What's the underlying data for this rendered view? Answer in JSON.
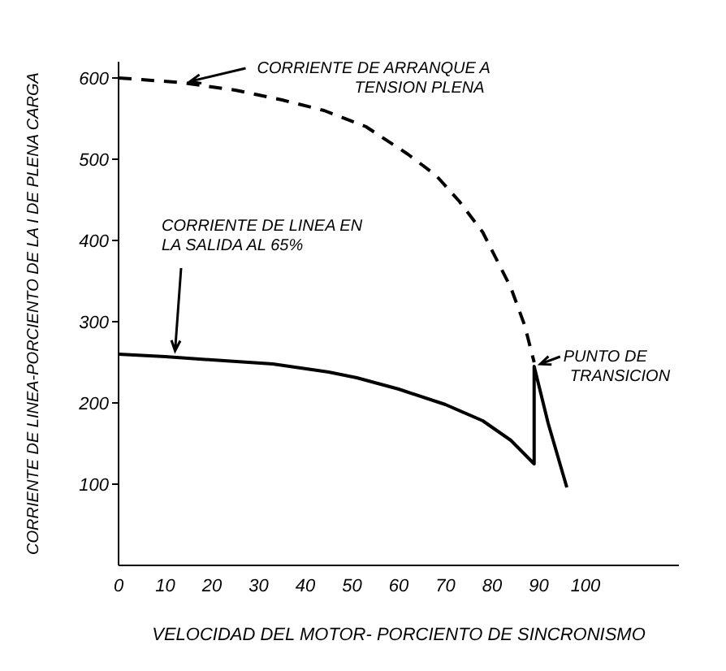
{
  "chart_data": {
    "type": "line",
    "xlabel": "VELOCIDAD DEL MOTOR- PORCIENTO DE SINCRONISMO",
    "ylabel": "CORRIENTE DE LINEA-PORCIENTO DE LA I DE PLENA CARGA",
    "xlim": [
      0,
      120
    ],
    "xticks": [
      0,
      10,
      20,
      30,
      40,
      50,
      60,
      70,
      80,
      90,
      100
    ],
    "ylim": [
      0,
      620
    ],
    "yticks": [
      100,
      200,
      300,
      400,
      500,
      600
    ],
    "grid": false,
    "legend": false,
    "marker": "none",
    "series": [
      {
        "color": "#000000",
        "line_style": "dashed",
        "x": [
          0,
          5,
          14,
          25,
          35,
          44,
          53,
          62,
          68,
          73,
          78,
          84,
          87,
          89
        ],
        "values": [
          600,
          598,
          594,
          585,
          573,
          560,
          540,
          506,
          480,
          448,
          410,
          342,
          295,
          250
        ]
      },
      {
        "color": "#000000",
        "line_style": "solid",
        "x": [
          0,
          10,
          20,
          33,
          45,
          51,
          60,
          70,
          78,
          84,
          89,
          89,
          92,
          96
        ],
        "values": [
          260,
          257,
          253,
          248,
          238,
          231,
          217,
          198,
          178,
          154,
          125,
          245,
          175,
          96
        ]
      }
    ],
    "annotations": [
      {
        "text": "CORRIENTE DE ARRANQUE A TENSION PLENA",
        "x": 14,
        "y": 594
      },
      {
        "text": "CORRIENTE DE LINEA EN LA SALIDA AL 65%",
        "x": 12,
        "y": 256
      },
      {
        "text": "PUNTO DE TRANSICION",
        "x": 89,
        "y": 245
      }
    ]
  }
}
